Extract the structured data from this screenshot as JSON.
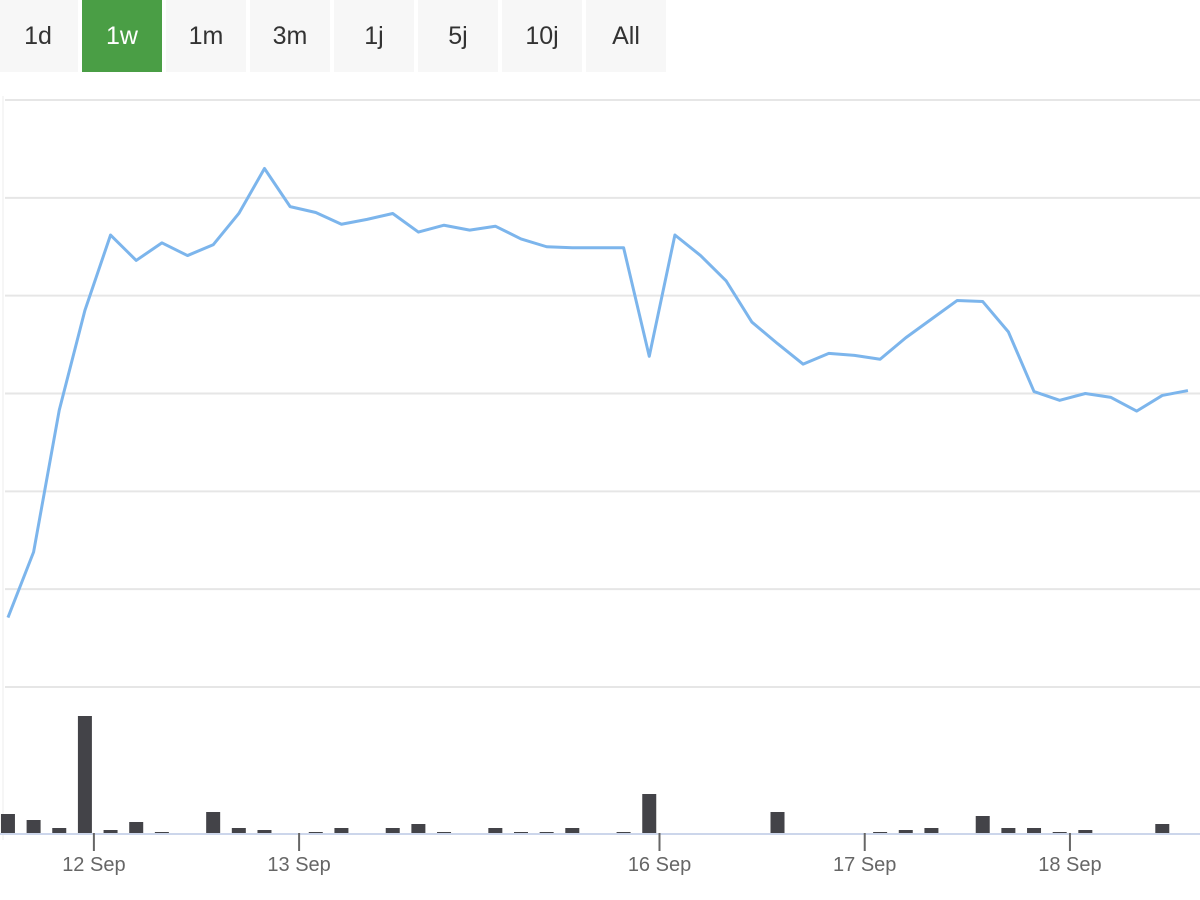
{
  "range_buttons": {
    "labels": [
      "1d",
      "1w",
      "1m",
      "3m",
      "1j",
      "5j",
      "10j",
      "All"
    ],
    "selected": 1
  },
  "chart_data": [
    {
      "type": "line",
      "color": "#7cb5ec",
      "grid": true,
      "x": [
        0,
        1,
        2,
        3,
        4,
        5,
        6,
        7,
        8,
        9,
        10,
        11,
        12,
        13,
        14,
        15,
        16,
        17,
        18,
        19,
        20,
        21,
        22,
        23,
        24,
        25,
        26,
        27,
        28,
        29,
        30,
        31,
        32,
        33,
        34,
        35,
        36,
        37,
        38,
        39,
        40,
        41,
        42,
        43,
        44,
        45,
        46
      ],
      "values": [
        0.71,
        1.38,
        2.83,
        3.85,
        4.62,
        4.36,
        4.54,
        4.41,
        4.52,
        4.84,
        5.3,
        4.91,
        4.85,
        4.73,
        4.78,
        4.84,
        4.65,
        4.72,
        4.67,
        4.71,
        4.58,
        4.5,
        4.49,
        4.49,
        4.49,
        3.38,
        4.62,
        4.41,
        4.15,
        3.73,
        3.51,
        3.3,
        3.41,
        3.39,
        3.35,
        3.57,
        3.76,
        3.95,
        3.94,
        3.63,
        3.02,
        2.93,
        3.0,
        2.96,
        2.82,
        2.98,
        3.03
      ],
      "xlim": [
        -0.31,
        46.47
      ],
      "ylim": [
        0,
        6
      ],
      "yticks": [
        0,
        1,
        2,
        3,
        4,
        5,
        6
      ]
    },
    {
      "type": "bar",
      "color": "#434348",
      "x": [
        0,
        1,
        2,
        3,
        4,
        5,
        6,
        7,
        8,
        9,
        10,
        11,
        12,
        13,
        14,
        15,
        16,
        17,
        18,
        19,
        20,
        21,
        22,
        23,
        24,
        25,
        26,
        27,
        28,
        29,
        30,
        31,
        32,
        33,
        34,
        35,
        36,
        37,
        38,
        39,
        40,
        41,
        42,
        43,
        44,
        45,
        46
      ],
      "values": [
        19,
        13,
        5,
        117,
        3,
        11,
        1,
        0,
        21,
        5,
        3,
        0,
        1,
        5,
        0,
        5,
        9,
        1,
        0,
        5,
        1,
        1,
        5,
        0,
        1,
        39,
        0,
        0,
        0,
        0,
        21,
        0,
        0,
        0,
        1,
        3,
        5,
        0,
        17,
        5,
        5,
        1,
        3,
        0,
        0,
        9,
        0
      ],
      "xlim": [
        -0.31,
        46.47
      ],
      "ylim": [
        0,
        146
      ],
      "xticks": [
        {
          "value": 3.35,
          "label": "12 Sep"
        },
        {
          "value": 11.35,
          "label": "13 Sep"
        },
        {
          "value": 25.4,
          "label": "16 Sep"
        },
        {
          "value": 33.4,
          "label": "17 Sep"
        },
        {
          "value": 41.4,
          "label": "18 Sep"
        }
      ]
    }
  ]
}
